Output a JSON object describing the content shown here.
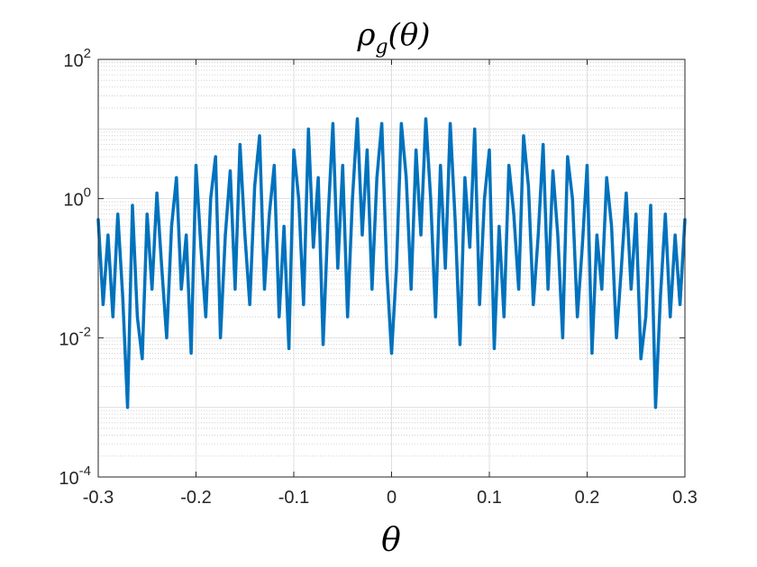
{
  "chart_data": {
    "type": "line",
    "title_main": "ρ",
    "title_sub": "g",
    "title_rest": "(θ)",
    "xlabel": "θ",
    "ylabel": "",
    "xlim": [
      -0.3,
      0.3
    ],
    "ylim": [
      0.0001,
      100
    ],
    "yscale": "log",
    "grid": true,
    "minor_grid": true,
    "legend": "none",
    "x_ticks": [
      -0.3,
      -0.2,
      -0.1,
      0,
      0.1,
      0.2,
      0.3
    ],
    "x_tick_labels": [
      "-0.3",
      "-0.2",
      "-0.1",
      "0",
      "0.1",
      "0.2",
      "0.3"
    ],
    "y_ticks": [
      {
        "base": "10",
        "exp": "-4",
        "value": 0.0001
      },
      {
        "base": "10",
        "exp": "-2",
        "value": 0.01
      },
      {
        "base": "10",
        "exp": "0",
        "value": 1
      },
      {
        "base": "10",
        "exp": "2",
        "value": 100
      }
    ],
    "series": [
      {
        "color": "#0072BD",
        "x": [
          -0.3,
          -0.295,
          -0.29,
          -0.285,
          -0.28,
          -0.275,
          -0.27,
          -0.265,
          -0.26,
          -0.255,
          -0.25,
          -0.245,
          -0.24,
          -0.235,
          -0.23,
          -0.225,
          -0.22,
          -0.215,
          -0.21,
          -0.205,
          -0.2,
          -0.195,
          -0.19,
          -0.185,
          -0.18,
          -0.175,
          -0.17,
          -0.165,
          -0.16,
          -0.155,
          -0.15,
          -0.145,
          -0.14,
          -0.135,
          -0.13,
          -0.125,
          -0.12,
          -0.115,
          -0.11,
          -0.105,
          -0.1,
          -0.095,
          -0.09,
          -0.085,
          -0.08,
          -0.075,
          -0.07,
          -0.065,
          -0.06,
          -0.055,
          -0.05,
          -0.045,
          -0.04,
          -0.035,
          -0.03,
          -0.025,
          -0.02,
          -0.015,
          -0.01,
          -0.005,
          0,
          0.005,
          0.01,
          0.015,
          0.02,
          0.025,
          0.03,
          0.035,
          0.04,
          0.045,
          0.05,
          0.055,
          0.06,
          0.065,
          0.07,
          0.075,
          0.08,
          0.085,
          0.09,
          0.095,
          0.1,
          0.105,
          0.11,
          0.115,
          0.12,
          0.125,
          0.13,
          0.135,
          0.14,
          0.145,
          0.15,
          0.155,
          0.16,
          0.165,
          0.17,
          0.175,
          0.18,
          0.185,
          0.19,
          0.195,
          0.2,
          0.205,
          0.21,
          0.215,
          0.22,
          0.225,
          0.23,
          0.235,
          0.24,
          0.245,
          0.25,
          0.255,
          0.26,
          0.265,
          0.27,
          0.275,
          0.28,
          0.285,
          0.29,
          0.295,
          0.3
        ],
        "y": [
          0.5,
          0.03,
          0.3,
          0.02,
          0.6,
          0.04,
          0.001,
          0.8,
          0.02,
          0.005,
          0.6,
          0.05,
          1.2,
          0.1,
          0.01,
          0.4,
          2.0,
          0.05,
          0.3,
          0.006,
          3.0,
          0.2,
          0.02,
          1.0,
          4.0,
          0.01,
          0.3,
          2.5,
          0.05,
          6.0,
          0.3,
          0.03,
          1.5,
          8.0,
          0.05,
          0.6,
          3.0,
          0.02,
          0.4,
          0.007,
          5.0,
          1.0,
          0.03,
          10.0,
          0.2,
          2.0,
          0.008,
          0.5,
          12.0,
          0.1,
          3.0,
          0.02,
          1.0,
          14.0,
          0.3,
          5.0,
          0.05,
          2.0,
          12.0,
          0.1,
          0.006,
          0.1,
          12.0,
          2.0,
          0.05,
          5.0,
          0.3,
          14.0,
          1.0,
          0.02,
          3.0,
          0.1,
          12.0,
          0.5,
          0.008,
          2.0,
          0.2,
          10.0,
          0.03,
          1.0,
          5.0,
          0.007,
          0.4,
          0.02,
          3.0,
          0.6,
          0.05,
          8.0,
          1.5,
          0.03,
          0.3,
          6.0,
          0.05,
          2.5,
          0.3,
          0.01,
          4.0,
          1.0,
          0.02,
          0.2,
          3.0,
          0.006,
          0.3,
          0.05,
          2.0,
          0.4,
          0.01,
          0.1,
          1.2,
          0.05,
          0.6,
          0.005,
          0.02,
          0.8,
          0.001,
          0.04,
          0.6,
          0.02,
          0.3,
          0.03,
          0.5
        ]
      }
    ]
  }
}
